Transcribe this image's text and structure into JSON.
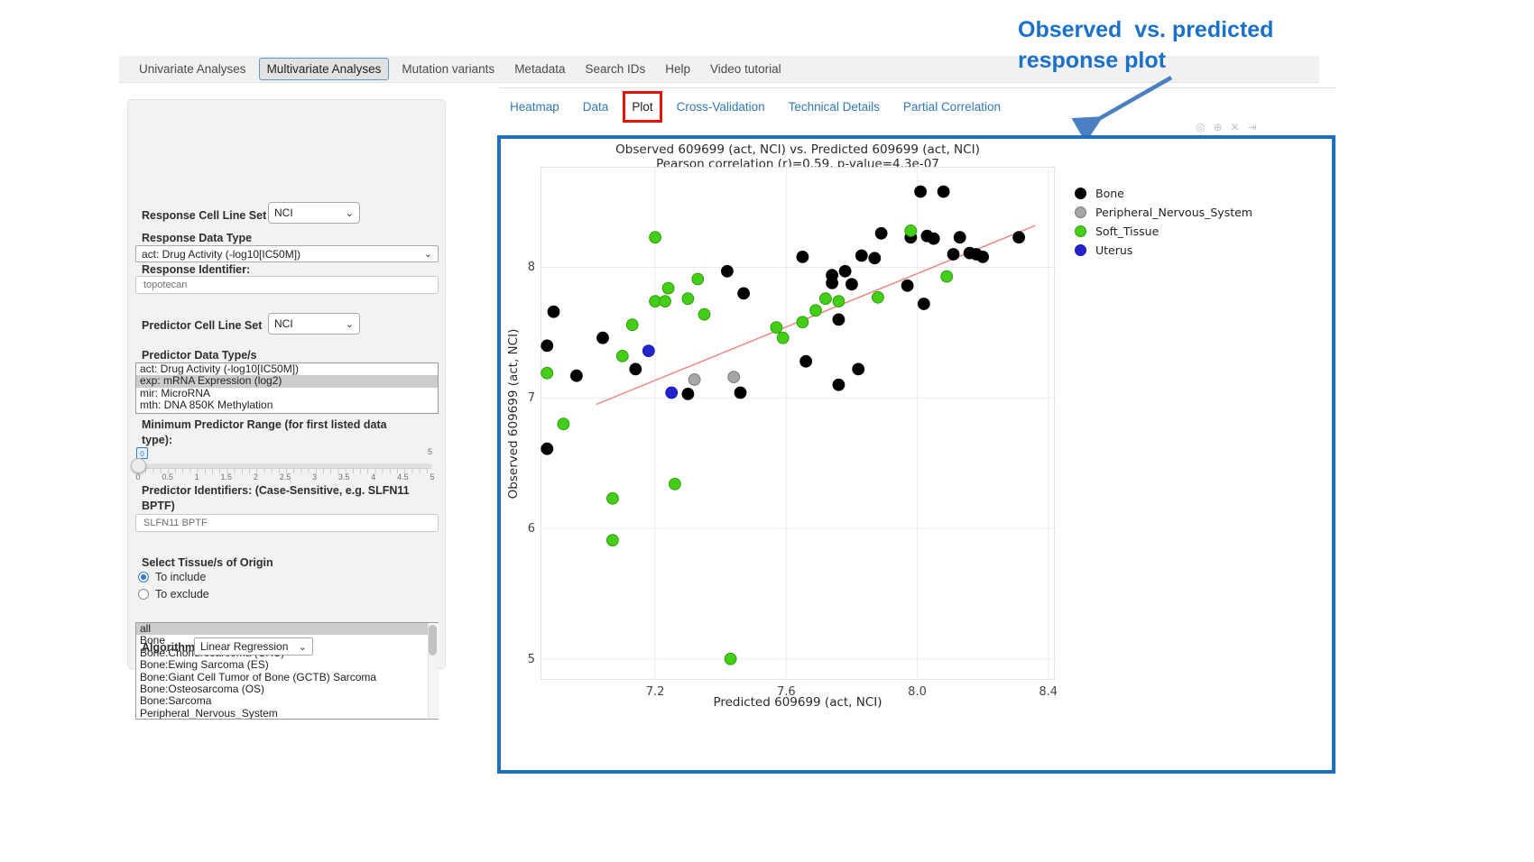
{
  "annotation": {
    "line1": "Observed  vs. predicted",
    "line2": "response plot",
    "color": "#1b70c8"
  },
  "navbar": {
    "tabs": [
      {
        "label": "Univariate Analyses",
        "active": false
      },
      {
        "label": "Multivariate Analyses",
        "active": true
      },
      {
        "label": "Mutation variants",
        "active": false
      },
      {
        "label": "Metadata",
        "active": false
      },
      {
        "label": "Search IDs",
        "active": false
      },
      {
        "label": "Help",
        "active": false
      },
      {
        "label": "Video tutorial",
        "active": false
      }
    ]
  },
  "sidebar": {
    "response_cell_line_set": {
      "label": "Response Cell Line Set",
      "value": "NCI"
    },
    "response_data_type": {
      "label": "Response Data Type",
      "value": "act: Drug Activity (-log10[IC50M])"
    },
    "response_identifier": {
      "label": "Response Identifier:",
      "value": "topotecan"
    },
    "predictor_cell_line_set": {
      "label": "Predictor Cell Line Set",
      "value": "NCI"
    },
    "predictor_data_types": {
      "label": "Predictor Data Type/s",
      "options": [
        "act: Drug Activity (-log10[IC50M])",
        "exp: mRNA Expression (log2)",
        "mir: MicroRNA",
        "mth: DNA 850K Methylation"
      ],
      "selected": "exp: mRNA Expression (log2)"
    },
    "min_predictor_range": {
      "label_line1": "Minimum Predictor Range (for first listed data",
      "label_line2": "type):",
      "value": "0",
      "max": "5",
      "ticks": [
        "0",
        "0.5",
        "1",
        "1.5",
        "2",
        "2.5",
        "3",
        "3.5",
        "4",
        "4.5",
        "5"
      ]
    },
    "predictor_identifiers": {
      "label_line1": "Predictor Identifiers: (Case-Sensitive, e.g. SLFN11",
      "label_line2": "BPTF)",
      "value": "SLFN11 BPTF"
    },
    "tissue_origin": {
      "label": "Select Tissue/s of Origin",
      "radios": [
        {
          "label": "To include",
          "selected": true
        },
        {
          "label": "To exclude",
          "selected": false
        }
      ],
      "options": [
        "all",
        "Bone",
        "Bone:Chondrosarcoma (CHS)",
        "Bone:Ewing Sarcoma (ES)",
        "Bone:Giant Cell Tumor of Bone (GCTB) Sarcoma",
        "Bone:Osteosarcoma (OS)",
        "Bone:Sarcoma",
        "Peripheral_Nervous_System"
      ],
      "selected": "all"
    },
    "algorithm": {
      "label": "Algorithm",
      "value": "Linear Regression"
    }
  },
  "subtabs": [
    {
      "label": "Heatmap",
      "active": false
    },
    {
      "label": "Data",
      "active": false
    },
    {
      "label": "Plot",
      "active": true
    },
    {
      "label": "Cross-Validation",
      "active": false
    },
    {
      "label": "Technical Details",
      "active": false
    },
    {
      "label": "Partial Correlation",
      "active": false
    }
  ],
  "modebar": {
    "icons": [
      {
        "name": "camera-icon",
        "glyph": "◎"
      },
      {
        "name": "zoom-icon",
        "glyph": "⊕"
      },
      {
        "name": "close-icon",
        "glyph": "✕"
      },
      {
        "name": "autoscale-icon",
        "glyph": "⇥"
      }
    ]
  },
  "chart_data": {
    "type": "scatter",
    "title": "Observed 609699 (act, NCI) vs. Predicted 609699 (act, NCI)",
    "subtitle": "Pearson correlation (r)=0.59, p-value=4.3e-07",
    "xlabel": "Predicted 609699 (act, NCI)",
    "ylabel": "Observed 609699 (act, NCI)",
    "xlim": [
      6.85,
      8.42
    ],
    "ylim": [
      4.84,
      8.77
    ],
    "xticks": [
      "7.2",
      "7.6",
      "8.0",
      "8.4"
    ],
    "yticks": [
      "5",
      "6",
      "7",
      "8"
    ],
    "grid": true,
    "legend_position": "right",
    "trend_line": {
      "color": "#f08080",
      "x1": 7.02,
      "y1": 6.95,
      "x2": 8.36,
      "y2": 8.32
    },
    "series": [
      {
        "name": "Bone",
        "color": "#000000",
        "stroke": "#000000",
        "points": [
          [
            6.89,
            7.66
          ],
          [
            6.87,
            7.4
          ],
          [
            6.87,
            6.61
          ],
          [
            6.96,
            7.17
          ],
          [
            7.04,
            7.46
          ],
          [
            7.14,
            7.22
          ],
          [
            7.3,
            7.03
          ],
          [
            7.42,
            7.97
          ],
          [
            7.46,
            7.04
          ],
          [
            7.47,
            7.8
          ],
          [
            7.65,
            8.08
          ],
          [
            7.66,
            7.28
          ],
          [
            7.74,
            7.94
          ],
          [
            7.74,
            7.88
          ],
          [
            7.76,
            7.6
          ],
          [
            7.76,
            7.1
          ],
          [
            7.78,
            7.97
          ],
          [
            7.8,
            7.87
          ],
          [
            7.82,
            7.22
          ],
          [
            7.83,
            8.09
          ],
          [
            7.87,
            8.07
          ],
          [
            7.89,
            8.26
          ],
          [
            7.97,
            7.86
          ],
          [
            7.98,
            8.23
          ],
          [
            8.01,
            8.58
          ],
          [
            8.02,
            7.72
          ],
          [
            8.03,
            8.24
          ],
          [
            8.05,
            8.22
          ],
          [
            8.08,
            8.58
          ],
          [
            8.11,
            8.1
          ],
          [
            8.13,
            8.23
          ],
          [
            8.16,
            8.11
          ],
          [
            8.18,
            8.1
          ],
          [
            8.2,
            8.08
          ],
          [
            8.31,
            8.23
          ]
        ]
      },
      {
        "name": "Peripheral_Nervous_System",
        "color": "#a6a6a6",
        "stroke": "#787878",
        "points": [
          [
            7.32,
            7.14
          ],
          [
            7.44,
            7.16
          ]
        ]
      },
      {
        "name": "Soft_Tissue",
        "color": "#44ce17",
        "stroke": "#2f9e10",
        "points": [
          [
            6.87,
            7.19
          ],
          [
            6.92,
            6.8
          ],
          [
            7.07,
            6.23
          ],
          [
            7.07,
            5.91
          ],
          [
            7.1,
            7.32
          ],
          [
            7.13,
            7.56
          ],
          [
            7.2,
            8.23
          ],
          [
            7.2,
            7.74
          ],
          [
            7.23,
            7.74
          ],
          [
            7.24,
            7.84
          ],
          [
            7.26,
            6.34
          ],
          [
            7.3,
            7.76
          ],
          [
            7.33,
            7.91
          ],
          [
            7.35,
            7.64
          ],
          [
            7.43,
            5.0
          ],
          [
            7.57,
            7.54
          ],
          [
            7.59,
            7.46
          ],
          [
            7.65,
            7.58
          ],
          [
            7.69,
            7.67
          ],
          [
            7.72,
            7.76
          ],
          [
            7.76,
            7.74
          ],
          [
            7.88,
            7.77
          ],
          [
            7.98,
            8.28
          ],
          [
            8.09,
            7.93
          ]
        ]
      },
      {
        "name": "Uterus",
        "color": "#2323cd",
        "stroke": "#1a1aa8",
        "points": [
          [
            7.18,
            7.36
          ],
          [
            7.25,
            7.04
          ]
        ]
      }
    ]
  }
}
